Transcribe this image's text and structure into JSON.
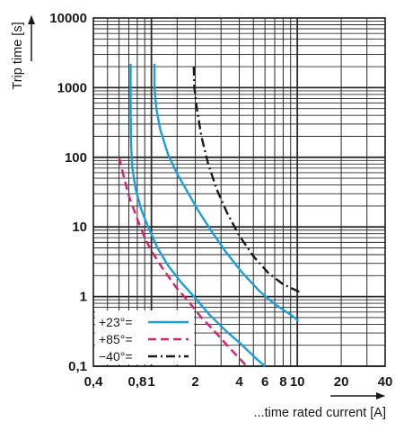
{
  "chart_data": {
    "type": "line",
    "x_scale": "log",
    "y_scale": "log",
    "xlim": [
      0.4,
      40
    ],
    "ylim": [
      0.1,
      10000
    ],
    "xlabel": "...time rated current [A]",
    "ylabel": "Trip time [s]",
    "grid": true,
    "legend": "bottom-left",
    "x_ticks": [
      {
        "value": 0.4,
        "label": "0,4"
      },
      {
        "value": 0.8,
        "label": "0,8"
      },
      {
        "value": 1,
        "label": "1"
      },
      {
        "value": 2,
        "label": "2"
      },
      {
        "value": 4,
        "label": "4"
      },
      {
        "value": 6,
        "label": "6"
      },
      {
        "value": 8,
        "label": "8"
      },
      {
        "value": 10,
        "label": "10"
      },
      {
        "value": 20,
        "label": "20"
      },
      {
        "value": 40,
        "label": "40"
      }
    ],
    "y_ticks": [
      {
        "value": 0.1,
        "label": "0,1"
      },
      {
        "value": 1,
        "label": "1"
      },
      {
        "value": 10,
        "label": "10"
      },
      {
        "value": 100,
        "label": "100"
      },
      {
        "value": 1000,
        "label": "1000"
      },
      {
        "value": 10000,
        "label": "10000"
      }
    ],
    "series": [
      {
        "name": "+23°=",
        "color": "#1aa0d8",
        "dash": "solid",
        "curves": [
          [
            [
              0.72,
              2200
            ],
            [
              0.72,
              500
            ],
            [
              0.725,
              150
            ],
            [
              0.74,
              70
            ],
            [
              0.78,
              35
            ],
            [
              0.85,
              18
            ],
            [
              0.95,
              10
            ],
            [
              1.1,
              5
            ],
            [
              1.3,
              2.8
            ],
            [
              1.6,
              1.6
            ],
            [
              2.0,
              0.95
            ],
            [
              2.5,
              0.55
            ],
            [
              3.2,
              0.33
            ],
            [
              4.2,
              0.2
            ],
            [
              5.2,
              0.13
            ],
            [
              6.0,
              0.1
            ]
          ],
          [
            [
              1.05,
              2200
            ],
            [
              1.05,
              1000
            ],
            [
              1.08,
              500
            ],
            [
              1.15,
              250
            ],
            [
              1.3,
              110
            ],
            [
              1.5,
              58
            ],
            [
              1.8,
              30
            ],
            [
              2.1,
              17
            ],
            [
              2.6,
              8.5
            ],
            [
              3.2,
              4.5
            ],
            [
              4.2,
              2.2
            ],
            [
              5.5,
              1.2
            ],
            [
              7.0,
              0.78
            ],
            [
              9.0,
              0.55
            ],
            [
              10.2,
              0.45
            ]
          ]
        ]
      },
      {
        "name": "+85°=",
        "color": "#d4206e",
        "dash": "dashed",
        "curves": [
          [
            [
              0.6,
              100
            ],
            [
              0.65,
              50
            ],
            [
              0.7,
              28
            ],
            [
              0.8,
              13
            ],
            [
              0.9,
              7
            ],
            [
              1.0,
              4.5
            ],
            [
              1.2,
              2.5
            ],
            [
              1.5,
              1.3
            ],
            [
              1.8,
              0.85
            ],
            [
              2.2,
              0.5
            ],
            [
              2.7,
              0.32
            ],
            [
              3.3,
              0.2
            ],
            [
              4.0,
              0.13
            ],
            [
              4.5,
              0.1
            ]
          ]
        ]
      },
      {
        "name": "−40°=",
        "color": "#1a1a1a",
        "dash": "dashdot",
        "curves": [
          [
            [
              1.95,
              2000
            ],
            [
              1.97,
              1000
            ],
            [
              2.05,
              500
            ],
            [
              2.2,
              200
            ],
            [
              2.45,
              80
            ],
            [
              2.8,
              35
            ],
            [
              3.3,
              16
            ],
            [
              4.0,
              7.5
            ],
            [
              5.0,
              3.8
            ],
            [
              6.3,
              2.2
            ],
            [
              8.0,
              1.5
            ],
            [
              10.5,
              1.15
            ]
          ]
        ]
      }
    ]
  }
}
